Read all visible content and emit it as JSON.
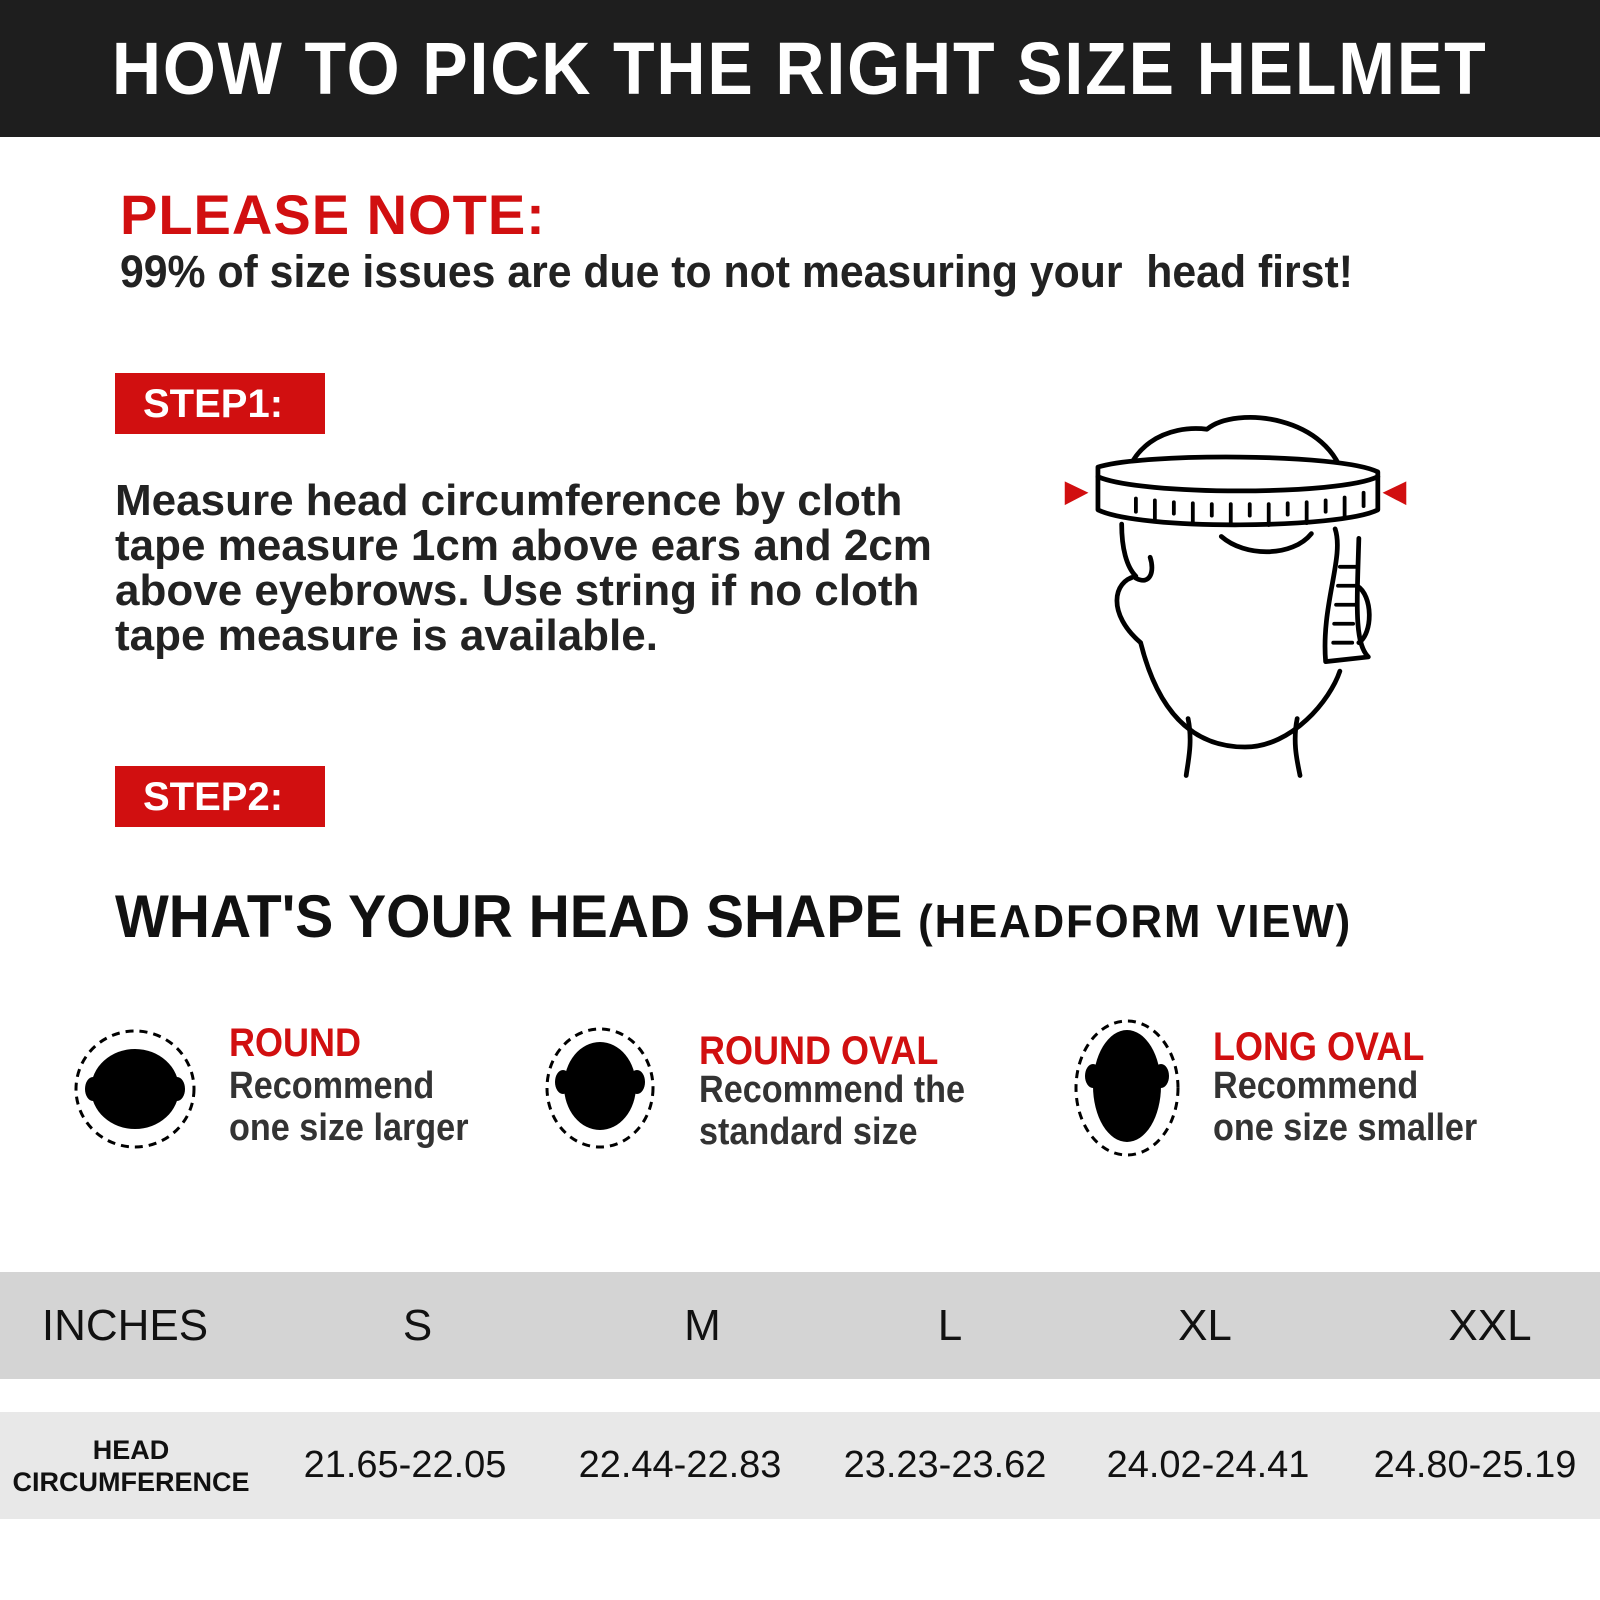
{
  "header": {
    "title": "HOW TO PICK THE RIGHT SIZE HELMET"
  },
  "note": {
    "heading": "PLEASE NOTE:",
    "text": "99% of size issues are due to not measuring your  head first!"
  },
  "step1": {
    "label": "STEP1:",
    "text": "Measure head circumference by cloth tape measure 1cm above ears and 2cm above eyebrows. Use string if no cloth tape measure is available."
  },
  "step2": {
    "label": "STEP2:",
    "heading": "WHAT'S YOUR HEAD SHAPE",
    "subheading": "(HEADFORM VIEW)"
  },
  "shapes": [
    {
      "name": "ROUND",
      "line1": "Recommend",
      "line2": "one size larger"
    },
    {
      "name": "ROUND OVAL",
      "line1": "Recommend the",
      "line2": "standard size"
    },
    {
      "name": "LONG OVAL",
      "line1": "Recommend",
      "line2": "one size smaller"
    }
  ],
  "size_table": {
    "header": [
      "INCHES",
      "S",
      "M",
      "L",
      "XL",
      "XXL"
    ],
    "row_label_1": "HEAD",
    "row_label_2": "CIRCUMFERENCE",
    "values": [
      "21.65-22.05",
      "22.44-22.83",
      "23.23-23.62",
      "24.02-24.41",
      "24.80-25.19"
    ]
  },
  "colors": {
    "accent": "#d10f10",
    "header_bg": "#1e1e1e",
    "table_header_bg": "#d4d4d4",
    "table_row_bg": "#e8e8e8"
  }
}
